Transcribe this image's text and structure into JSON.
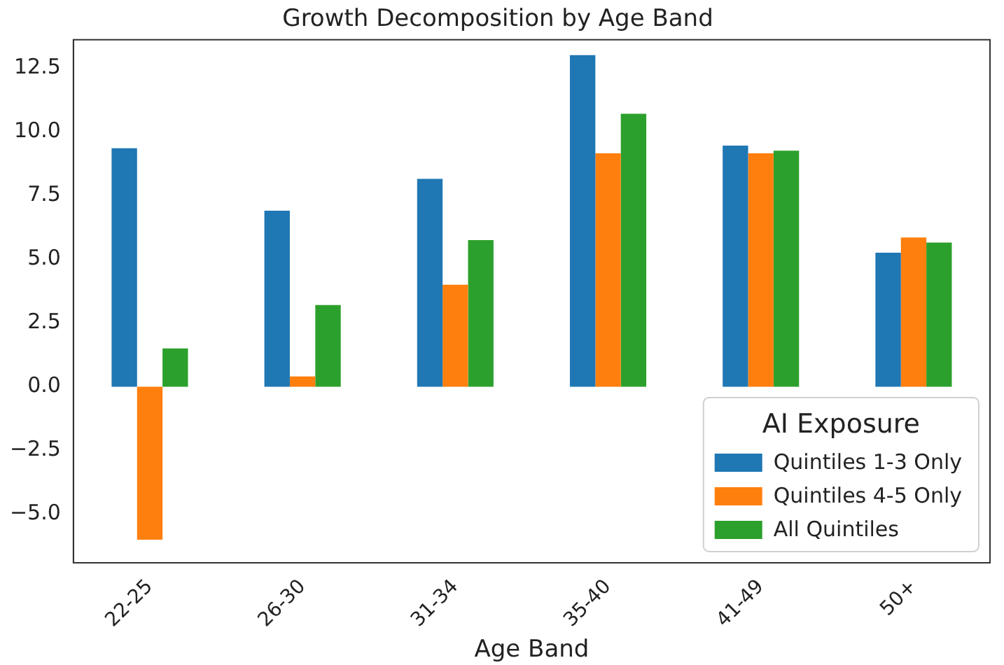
{
  "chart_data": {
    "type": "bar",
    "title": "Growth Decomposition by Age Band",
    "xlabel": "Age Band",
    "legend_title": "AI Exposure",
    "categories": [
      "22-25",
      "26-30",
      "31-34",
      "35-40",
      "41-49",
      "50+"
    ],
    "series": [
      {
        "name": "Quintiles 1-3 Only",
        "color": "#1f77b4",
        "values": [
          9.35,
          6.9,
          8.15,
          13.0,
          9.45,
          5.25
        ]
      },
      {
        "name": "Quintiles 4-5 Only",
        "color": "#ff7f0e",
        "values": [
          -6.0,
          0.4,
          4.0,
          9.15,
          9.15,
          5.85
        ]
      },
      {
        "name": "All Quintiles",
        "color": "#2ca02c",
        "values": [
          1.5,
          3.2,
          5.75,
          10.7,
          9.25,
          5.65
        ]
      }
    ],
    "ylim": [
      -6.9,
      13.6
    ],
    "yticks": [
      {
        "value": -5,
        "label": "−5.0"
      },
      {
        "value": -2.5,
        "label": "−2.5"
      },
      {
        "value": 0,
        "label": "0.0"
      },
      {
        "value": 2.5,
        "label": "2.5"
      },
      {
        "value": 5,
        "label": "5.0"
      },
      {
        "value": 7.5,
        "label": "7.5"
      },
      {
        "value": 10,
        "label": "10.0"
      },
      {
        "value": 12.5,
        "label": "12.5"
      }
    ],
    "grid": false,
    "legend": "bottom right"
  }
}
